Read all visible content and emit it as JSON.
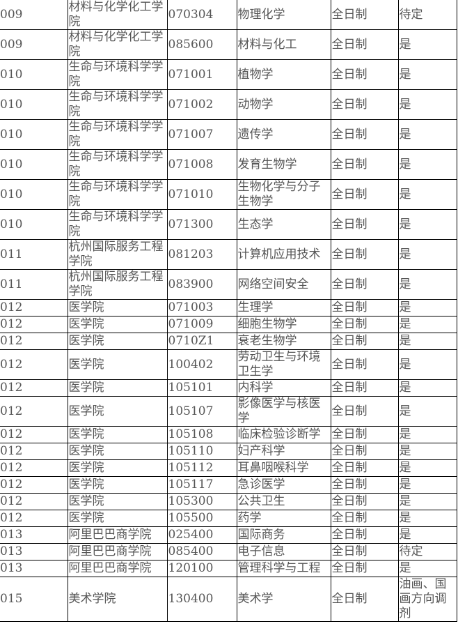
{
  "rows": [
    [
      "009",
      "材料与化学化工学院",
      "070304",
      "物理化学",
      "全日制",
      "待定"
    ],
    [
      "009",
      "材料与化学化工学院",
      "085600",
      "材料与化工",
      "全日制",
      "是"
    ],
    [
      "010",
      "生命与环境科学学院",
      "071001",
      "植物学",
      "全日制",
      "是"
    ],
    [
      "010",
      "生命与环境科学学院",
      "071002",
      "动物学",
      "全日制",
      "是"
    ],
    [
      "010",
      "生命与环境科学学院",
      "071007",
      "遗传学",
      "全日制",
      "是"
    ],
    [
      "010",
      "生命与环境科学学院",
      "071008",
      "发育生物学",
      "全日制",
      "是"
    ],
    [
      "010",
      "生命与环境科学学院",
      "071010",
      "生物化学与分子生物学",
      "全日制",
      "是"
    ],
    [
      "010",
      "生命与环境科学学院",
      "071300",
      "生态学",
      "全日制",
      "是"
    ],
    [
      "011",
      "杭州国际服务工程学院",
      "081203",
      "计算机应用技术",
      "全日制",
      "是"
    ],
    [
      "011",
      "杭州国际服务工程学院",
      "083900",
      "网络空间安全",
      "全日制",
      "是"
    ],
    [
      "012",
      "医学院",
      "071003",
      "生理学",
      "全日制",
      "是"
    ],
    [
      "012",
      "医学院",
      "071009",
      "细胞生物学",
      "全日制",
      "是"
    ],
    [
      "012",
      "医学院",
      "0710Z1",
      "衰老生物学",
      "全日制",
      "是"
    ],
    [
      "012",
      "医学院",
      "100402",
      "劳动卫生与环境卫生学",
      "全日制",
      "是"
    ],
    [
      "012",
      "医学院",
      "105101",
      "内科学",
      "全日制",
      "是"
    ],
    [
      "012",
      "医学院",
      "105107",
      "影像医学与核医学",
      "全日制",
      "是"
    ],
    [
      "012",
      "医学院",
      "105108",
      "临床检验诊断学",
      "全日制",
      "是"
    ],
    [
      "012",
      "医学院",
      "105110",
      "妇产科学",
      "全日制",
      "是"
    ],
    [
      "012",
      "医学院",
      "105112",
      "耳鼻咽喉科学",
      "全日制",
      "是"
    ],
    [
      "012",
      "医学院",
      "105117",
      "急诊医学",
      "全日制",
      "是"
    ],
    [
      "012",
      "医学院",
      "105300",
      "公共卫生",
      "全日制",
      "是"
    ],
    [
      "012",
      "医学院",
      "105500",
      "药学",
      "全日制",
      "是"
    ],
    [
      "013",
      "阿里巴巴商学院",
      "025400",
      "国际商务",
      "全日制",
      "是"
    ],
    [
      "013",
      "阿里巴巴商学院",
      "085400",
      "电子信息",
      "全日制",
      "待定"
    ],
    [
      "013",
      "阿里巴巴商学院",
      "120100",
      "管理科学与工程",
      "全日制",
      "是"
    ],
    [
      "015",
      "美术学院",
      "130400",
      "美术学",
      "全日制",
      "油画、国画方向调剂"
    ]
  ]
}
